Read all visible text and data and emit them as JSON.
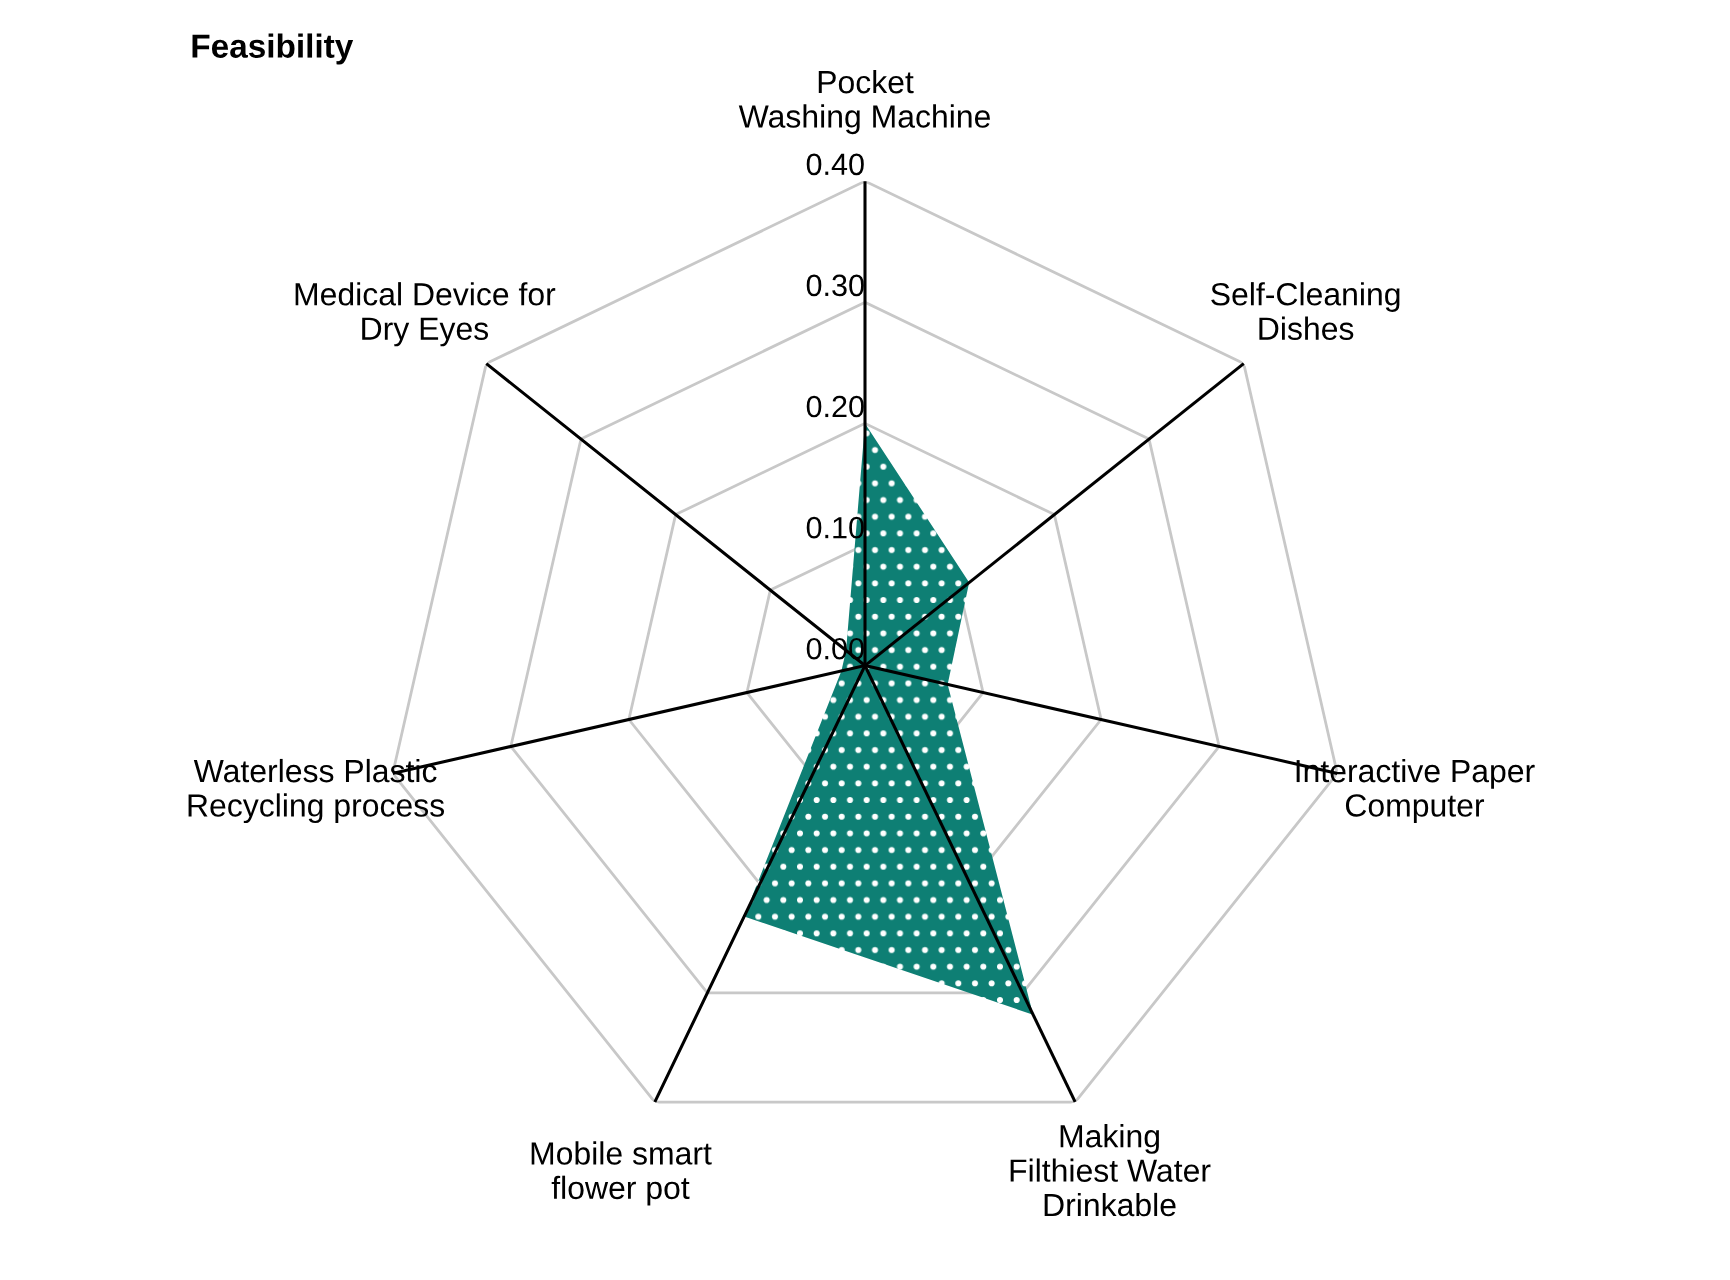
{
  "chart_data": {
    "type": "radar",
    "title": "Feasibility",
    "categories": [
      "Pocket\nWashing Machine",
      "Self-Cleaning\nDishes",
      "Interactive Paper\nComputer",
      "Making\nFilthiest Water\nDrinkable",
      "Mobile smart\nflower pot",
      "Waterless Plastic\nRecycling process",
      "Medical Device for\nDry Eyes"
    ],
    "series": [
      {
        "color": "#0e7f74",
        "values": [
          0.2,
          0.11,
          0.07,
          0.32,
          0.23,
          0.02,
          0.02
        ]
      }
    ],
    "ylim": [
      0,
      0.4
    ],
    "yticks": [
      {
        "value": 0,
        "label": "0.00"
      },
      {
        "value": 0.1,
        "label": "0.10"
      },
      {
        "value": 0.2,
        "label": "0.20"
      },
      {
        "value": 0.3,
        "label": "0.30"
      },
      {
        "value": 0.4,
        "label": "0.40"
      }
    ],
    "grid": true,
    "legend": false
  }
}
